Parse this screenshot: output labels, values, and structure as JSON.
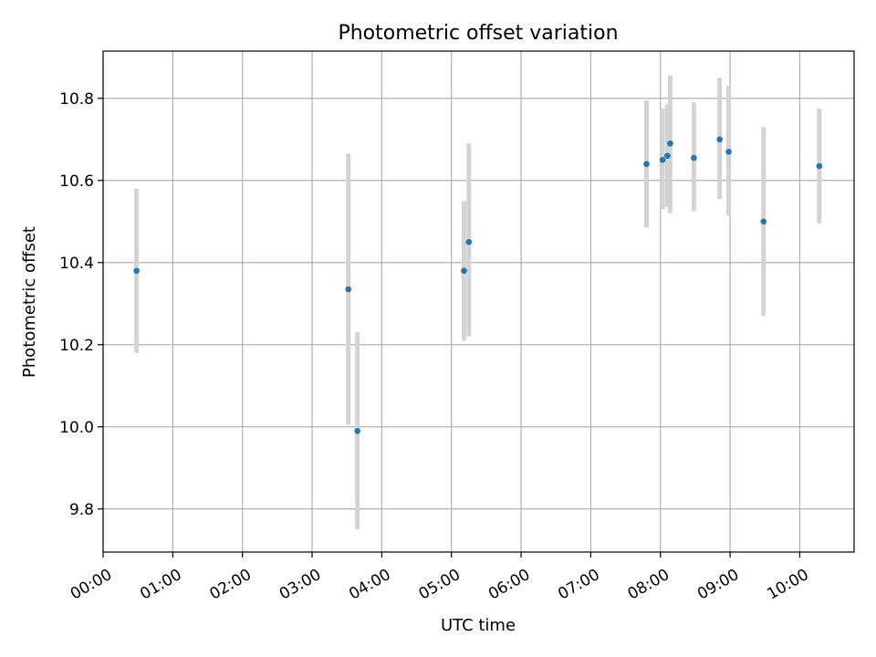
{
  "chart_data": {
    "type": "scatter",
    "title": "Photometric offset variation",
    "xlabel": "UTC time",
    "ylabel": "Photometric offset",
    "x_unit": "hours UTC",
    "xlim": [
      0.0,
      10.78
    ],
    "ylim": [
      9.695,
      10.915
    ],
    "x_ticks": [
      {
        "value": 0,
        "label": "00:00"
      },
      {
        "value": 1,
        "label": "01:00"
      },
      {
        "value": 2,
        "label": "02:00"
      },
      {
        "value": 3,
        "label": "03:00"
      },
      {
        "value": 4,
        "label": "04:00"
      },
      {
        "value": 5,
        "label": "05:00"
      },
      {
        "value": 6,
        "label": "06:00"
      },
      {
        "value": 7,
        "label": "07:00"
      },
      {
        "value": 8,
        "label": "08:00"
      },
      {
        "value": 9,
        "label": "09:00"
      },
      {
        "value": 10,
        "label": "10:00"
      }
    ],
    "y_ticks": [
      {
        "value": 9.8,
        "label": "9.8"
      },
      {
        "value": 10.0,
        "label": "10.0"
      },
      {
        "value": 10.2,
        "label": "10.2"
      },
      {
        "value": 10.4,
        "label": "10.4"
      },
      {
        "value": 10.6,
        "label": "10.6"
      },
      {
        "value": 10.8,
        "label": "10.8"
      }
    ],
    "grid": true,
    "point_color": "#1f77b4",
    "errorbar_color": "#d3d3d3",
    "points": [
      {
        "x": 0.48,
        "y": 10.38,
        "ylo": 10.18,
        "yhi": 10.58
      },
      {
        "x": 3.52,
        "y": 10.335,
        "ylo": 10.005,
        "yhi": 10.665
      },
      {
        "x": 3.65,
        "y": 9.99,
        "ylo": 9.75,
        "yhi": 10.23
      },
      {
        "x": 5.18,
        "y": 10.38,
        "ylo": 10.21,
        "yhi": 10.55
      },
      {
        "x": 5.25,
        "y": 10.45,
        "ylo": 10.22,
        "yhi": 10.69
      },
      {
        "x": 7.8,
        "y": 10.64,
        "ylo": 10.485,
        "yhi": 10.795
      },
      {
        "x": 8.03,
        "y": 10.65,
        "ylo": 10.53,
        "yhi": 10.775
      },
      {
        "x": 8.1,
        "y": 10.66,
        "ylo": 10.535,
        "yhi": 10.785
      },
      {
        "x": 8.14,
        "y": 10.69,
        "ylo": 10.52,
        "yhi": 10.855
      },
      {
        "x": 8.48,
        "y": 10.655,
        "ylo": 10.525,
        "yhi": 10.79
      },
      {
        "x": 8.85,
        "y": 10.7,
        "ylo": 10.555,
        "yhi": 10.85
      },
      {
        "x": 8.98,
        "y": 10.67,
        "ylo": 10.515,
        "yhi": 10.83
      },
      {
        "x": 9.48,
        "y": 10.5,
        "ylo": 10.27,
        "yhi": 10.73
      },
      {
        "x": 10.28,
        "y": 10.635,
        "ylo": 10.495,
        "yhi": 10.775
      }
    ]
  }
}
